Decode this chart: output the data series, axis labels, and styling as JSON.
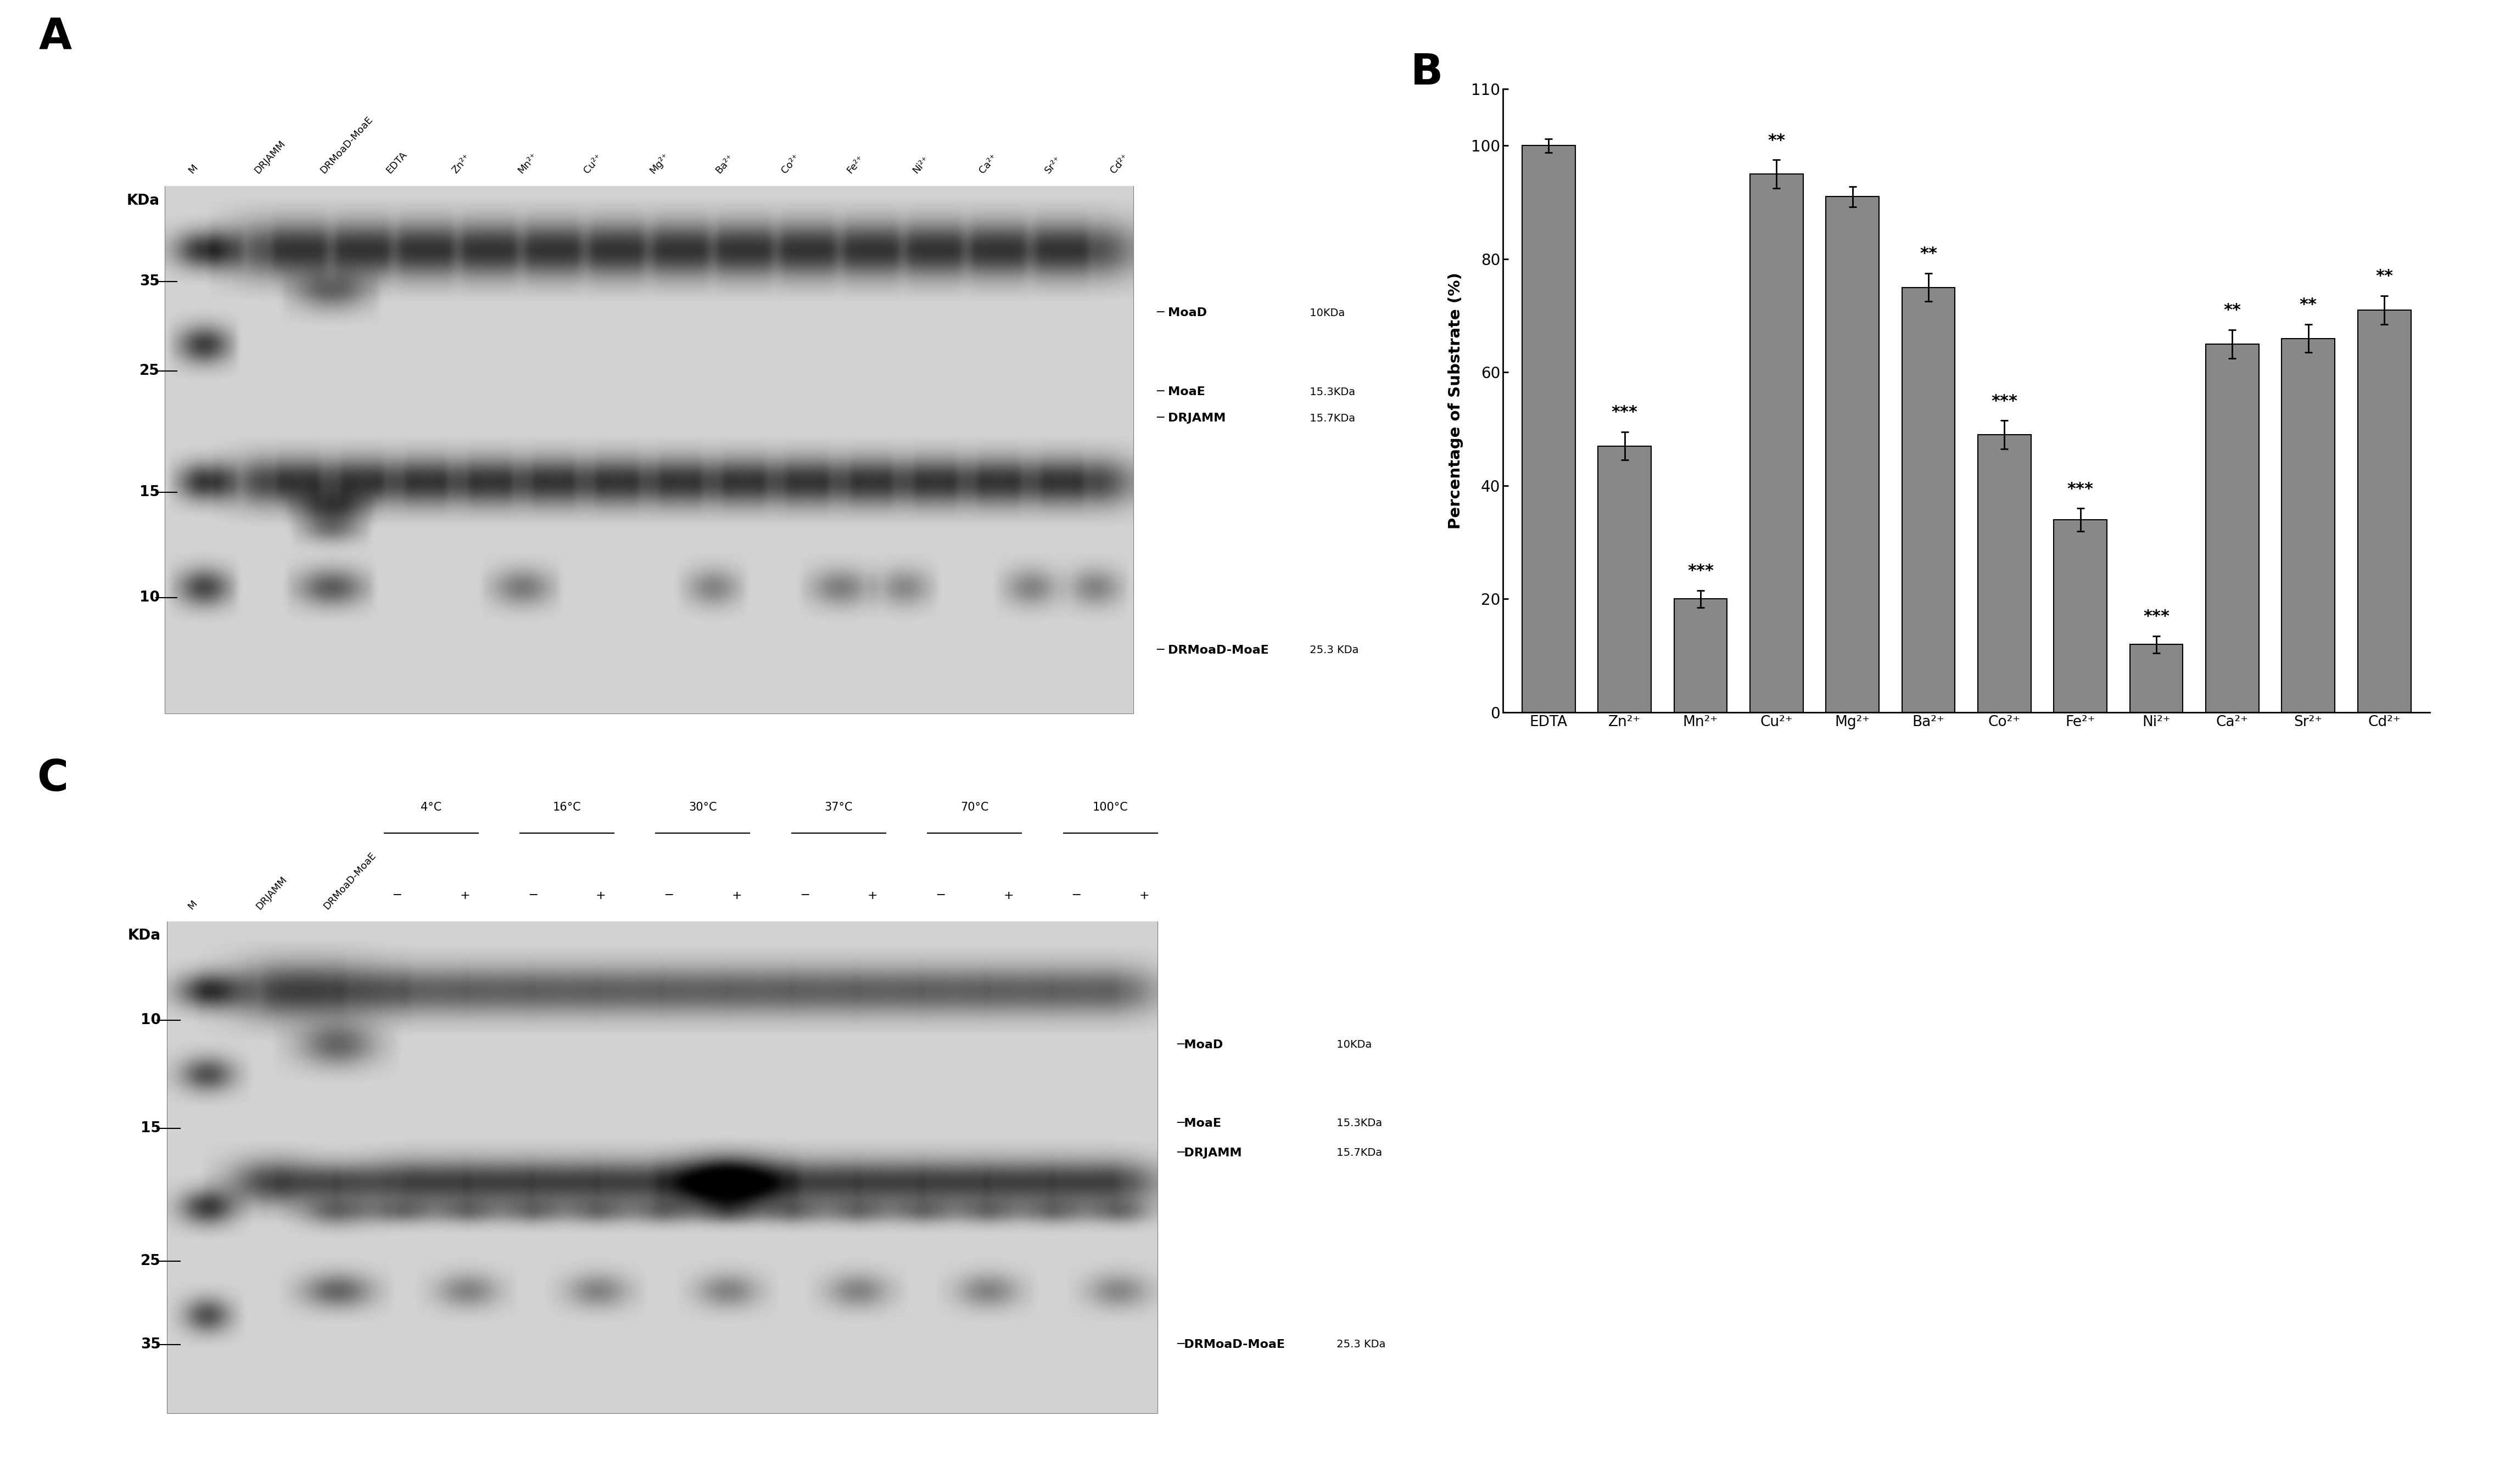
{
  "fig_width": 45.62,
  "fig_height": 27.04,
  "bar_chart": {
    "categories": [
      "EDTA",
      "Zn²⁺",
      "Mn²⁺",
      "Cu²⁺",
      "Mg²⁺",
      "Ba²⁺",
      "Co²⁺",
      "Fe²⁺",
      "Ni²⁺",
      "Ca²⁺",
      "Sr²⁺",
      "Cd²⁺"
    ],
    "values": [
      100,
      47,
      20,
      95,
      91,
      75,
      49,
      34,
      12,
      65,
      66,
      71
    ],
    "errors": [
      1.2,
      2.5,
      1.5,
      2.5,
      1.8,
      2.5,
      2.5,
      2.0,
      1.5,
      2.5,
      2.5,
      2.5
    ],
    "significance": [
      "",
      "***",
      "***",
      "**",
      "",
      "**",
      "***",
      "***",
      "***",
      "**",
      "**",
      "**"
    ],
    "bar_color": "#888888",
    "bar_edge_color": "#000000",
    "ylabel": "Percentage of Substrate (%)",
    "ylim": [
      0,
      110
    ],
    "yticks": [
      0,
      20,
      40,
      60,
      80,
      100,
      110
    ]
  },
  "gel_bg": 210,
  "gel_band_dark": 40,
  "gel_band_mid": 100,
  "gel_band_faint": 160
}
